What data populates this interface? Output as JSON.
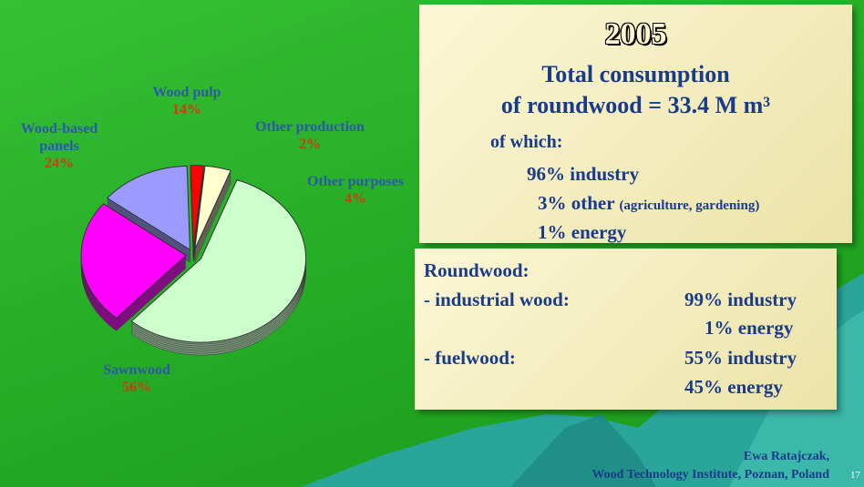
{
  "chart_data": {
    "type": "pie",
    "categories": [
      "Wood pulp",
      "Other production",
      "Other purposes",
      "Sawnwood",
      "Wood-based panels"
    ],
    "values": [
      14,
      2,
      4,
      56,
      24
    ],
    "value_labels": [
      "14%",
      "2%",
      "4%",
      "56%",
      "24%"
    ],
    "colors": [
      "#9a9aff",
      "#ff0000",
      "#ffffd0",
      "#ccffcc",
      "#ff00ff"
    ]
  },
  "summary": {
    "year": "2005",
    "line1": "Total consumption",
    "line2": "of roundwood = 33.4 M m³",
    "line3": "of which:",
    "industry": "96% industry",
    "other": "3% other",
    "other_note": "(agriculture, gardening)",
    "energy": "1% energy"
  },
  "roundwood": {
    "title": "Roundwood:",
    "industrial_label": "- industrial wood:",
    "industrial_1": "99% industry",
    "industrial_2": "1% energy",
    "fuel_label": "- fuelwood:",
    "fuel_1": "55% industry",
    "fuel_2": "45% energy"
  },
  "footer": {
    "author": "Ewa Ratajczak,",
    "institute": "Wood Technology Institute, Poznan, Poland",
    "page": "17"
  }
}
